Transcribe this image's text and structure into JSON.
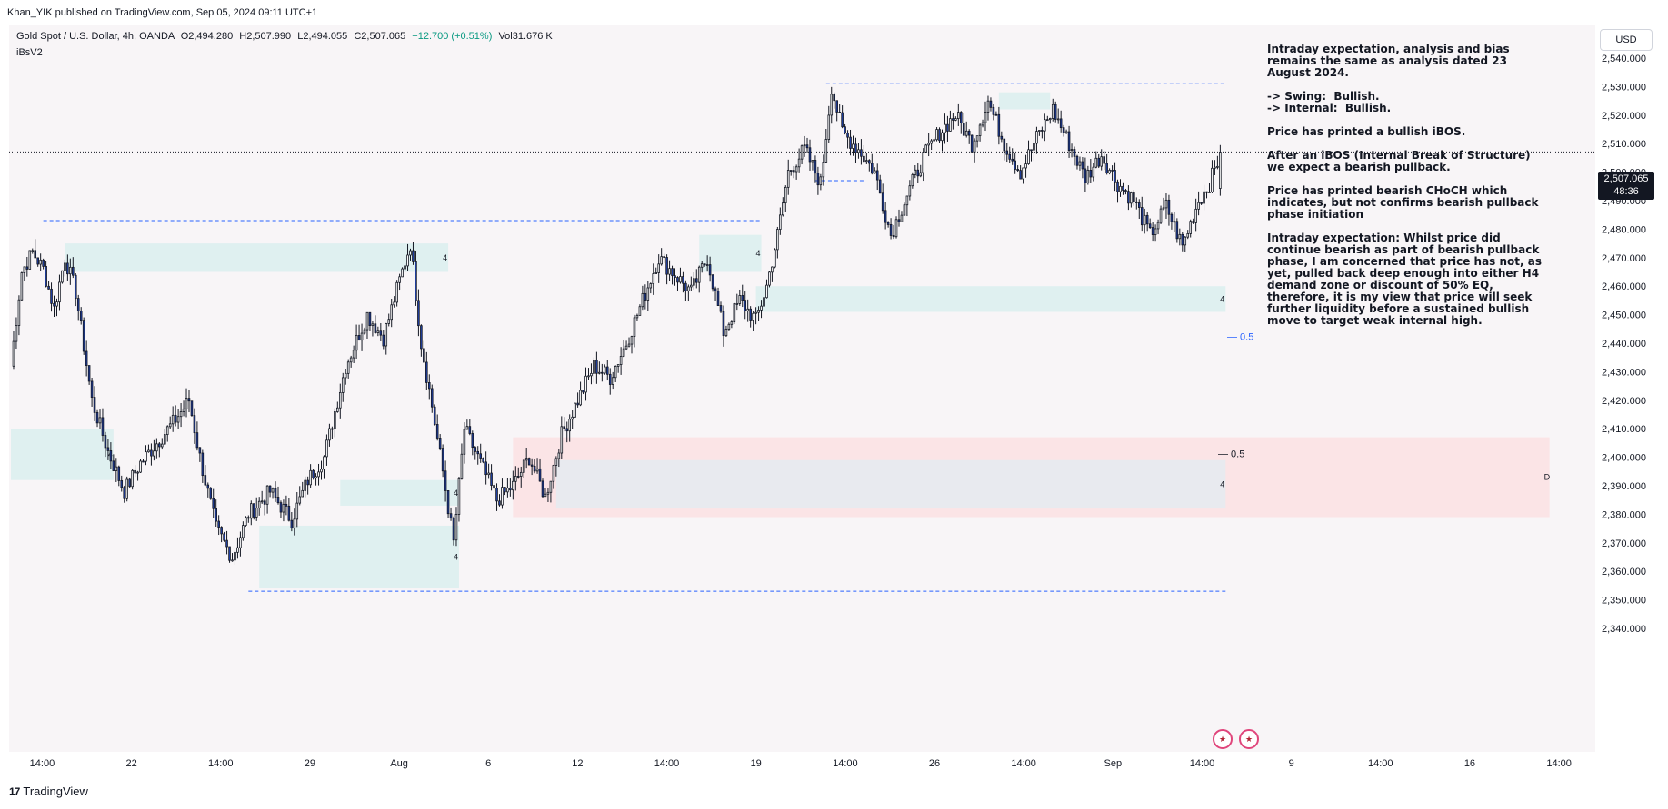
{
  "header": {
    "published": "Khan_YIK published on TradingView.com, Sep 05, 2024 09:11 UTC+1"
  },
  "legend": {
    "symbol": "Gold Spot / U.S. Dollar, 4h, OANDA",
    "open": "O2,494.280",
    "high": "H2,507.990",
    "low": "L2,494.055",
    "close": "C2,507.065",
    "change": "+12.700 (+0.51%)",
    "volume": "Vol31.676 K",
    "indicator": "iBsV2"
  },
  "currency_button": "USD",
  "price_tag": {
    "price": "2,507.065",
    "countdown": "48:36"
  },
  "analysis_text": "Intraday expectation, analysis and bias remains the same as analysis dated 23 August 2024.\n\n-> Swing:  Bullish.\n-> Internal:  Bullish.\n\nPrice has printed a bullish iBOS.\n\nAfter an iBOS (Internal Break of Structure) we expect a bearish pullback.\n\nPrice has printed bearish CHoCH which indicates, but not confirms bearish pullback phase initiation\n\nIntraday expectation: Whilst price did continue bearish as part of bearish pullback phase, I am concerned that price has not, as yet, pulled back deep enough into either H4 demand zone or discount of 50% EQ, therefore, it is my view that price will seek further liquidity before a sustained bullish move to target weak internal high.",
  "footer": {
    "brand": "TradingView"
  },
  "colors": {
    "up_candle": "#ffffff",
    "down_candle": "#1f3fa6",
    "wick": "#131722",
    "demand_zone": "#dff0f0",
    "premium_zone": "#fbe4e6",
    "discount_zone": "#e6eaf0",
    "liquidity_line": "#2962ff"
  },
  "chart_data": {
    "type": "candlestick",
    "symbol": "XAUUSD",
    "timeframe": "4h",
    "y_ticks": [
      "2,340.000",
      "2,350.000",
      "2,360.000",
      "2,370.000",
      "2,380.000",
      "2,390.000",
      "2,400.000",
      "2,410.000",
      "2,420.000",
      "2,430.000",
      "2,440.000",
      "2,450.000",
      "2,460.000",
      "2,470.000",
      "2,480.000",
      "2,490.000",
      "2,500.000",
      "2,510.000",
      "2,520.000",
      "2,530.000",
      "2,540.000"
    ],
    "y_range": [
      2335,
      2545
    ],
    "x_labels": [
      "14:00",
      "22",
      "14:00",
      "29",
      "Aug",
      "6",
      "12",
      "14:00",
      "19",
      "14:00",
      "26",
      "14:00",
      "Sep",
      "14:00",
      "9",
      "14:00",
      "16",
      "14:00"
    ],
    "anchor_points": [
      [
        0,
        2432
      ],
      [
        4,
        2465
      ],
      [
        8,
        2472
      ],
      [
        12,
        2466
      ],
      [
        16,
        2452
      ],
      [
        20,
        2470
      ],
      [
        24,
        2458
      ],
      [
        30,
        2420
      ],
      [
        36,
        2402
      ],
      [
        42,
        2388
      ],
      [
        48,
        2398
      ],
      [
        54,
        2405
      ],
      [
        60,
        2412
      ],
      [
        66,
        2420
      ],
      [
        70,
        2400
      ],
      [
        76,
        2375
      ],
      [
        82,
        2365
      ],
      [
        88,
        2380
      ],
      [
        96,
        2388
      ],
      [
        104,
        2378
      ],
      [
        110,
        2392
      ],
      [
        116,
        2400
      ],
      [
        124,
        2432
      ],
      [
        132,
        2450
      ],
      [
        138,
        2442
      ],
      [
        144,
        2462
      ],
      [
        148,
        2475
      ],
      [
        152,
        2440
      ],
      [
        156,
        2418
      ],
      [
        160,
        2395
      ],
      [
        164,
        2370
      ],
      [
        168,
        2410
      ],
      [
        174,
        2398
      ],
      [
        180,
        2385
      ],
      [
        186,
        2390
      ],
      [
        192,
        2400
      ],
      [
        198,
        2386
      ],
      [
        204,
        2408
      ],
      [
        210,
        2420
      ],
      [
        216,
        2432
      ],
      [
        222,
        2428
      ],
      [
        228,
        2440
      ],
      [
        234,
        2455
      ],
      [
        240,
        2470
      ],
      [
        246,
        2464
      ],
      [
        252,
        2458
      ],
      [
        258,
        2470
      ],
      [
        264,
        2444
      ],
      [
        270,
        2455
      ],
      [
        276,
        2448
      ],
      [
        280,
        2460
      ],
      [
        284,
        2478
      ],
      [
        288,
        2500
      ],
      [
        294,
        2508
      ],
      [
        300,
        2496
      ],
      [
        304,
        2530
      ],
      [
        308,
        2514
      ],
      [
        314,
        2508
      ],
      [
        320,
        2500
      ],
      [
        326,
        2478
      ],
      [
        332,
        2492
      ],
      [
        338,
        2505
      ],
      [
        344,
        2514
      ],
      [
        350,
        2520
      ],
      [
        356,
        2510
      ],
      [
        362,
        2525
      ],
      [
        368,
        2510
      ],
      [
        374,
        2500
      ],
      [
        380,
        2512
      ],
      [
        386,
        2522
      ],
      [
        392,
        2510
      ],
      [
        398,
        2498
      ],
      [
        404,
        2506
      ],
      [
        410,
        2496
      ],
      [
        416,
        2490
      ],
      [
        422,
        2478
      ],
      [
        428,
        2488
      ],
      [
        434,
        2474
      ],
      [
        440,
        2490
      ],
      [
        444,
        2496
      ],
      [
        448,
        2506
      ]
    ],
    "total_slots": 570,
    "last_candle": {
      "open": 2494.28,
      "high": 2507.99,
      "low": 2494.055,
      "close": 2507.065
    },
    "zones": [
      {
        "type": "demand",
        "label": "4",
        "from_slot": 20,
        "to_slot": 162,
        "low": 2465,
        "high": 2475
      },
      {
        "type": "demand",
        "label": "4",
        "from_slot": 276,
        "to_slot": 450,
        "low": 2451,
        "high": 2460
      },
      {
        "type": "demand",
        "label": "4",
        "from_slot": 255,
        "to_slot": 278,
        "low": 2465,
        "high": 2478
      },
      {
        "type": "demand",
        "label": "4",
        "from_slot": 0,
        "to_slot": 38,
        "low": 2392,
        "high": 2410
      },
      {
        "type": "demand",
        "label": "4",
        "from_slot": 122,
        "to_slot": 166,
        "low": 2383,
        "high": 2392
      },
      {
        "type": "demand",
        "label": "4",
        "from_slot": 92,
        "to_slot": 166,
        "low": 2354,
        "high": 2376
      },
      {
        "type": "demand",
        "label": "",
        "from_slot": 366,
        "to_slot": 385,
        "low": 2522,
        "high": 2528
      },
      {
        "type": "premium",
        "label": "D",
        "from_slot": 186,
        "to_slot": 570,
        "low": 2379,
        "high": 2407
      },
      {
        "type": "discount",
        "label": "4",
        "from_slot": 202,
        "to_slot": 450,
        "low": 2382,
        "high": 2399
      }
    ],
    "lines": [
      {
        "label": "",
        "from_slot": 12,
        "to_slot": 278,
        "price": 2483
      },
      {
        "label": "",
        "from_slot": 302,
        "to_slot": 450,
        "price": 2531
      },
      {
        "label": "",
        "from_slot": 88,
        "to_slot": 450,
        "price": 2353
      },
      {
        "label": "",
        "from_slot": 298,
        "to_slot": 316,
        "price": 2497
      }
    ],
    "eq_levels": [
      {
        "label": "0.5",
        "price": 2442
      },
      {
        "label": "0.5",
        "price": 2401
      }
    ],
    "current_price": 2507.065
  }
}
